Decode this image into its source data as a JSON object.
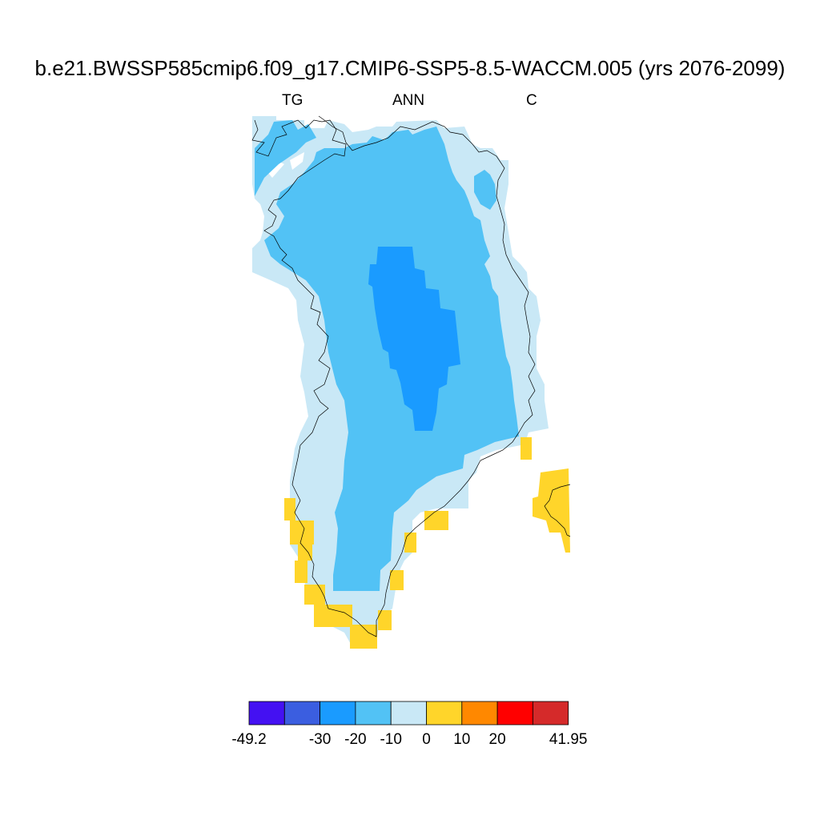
{
  "title": "b.e21.BWSSP585cmip6.f09_g17.CMIP6-SSP5-8.5-WACCM.005 (yrs 2076-2099)",
  "left_string": "TG",
  "center_string": "ANN",
  "right_string": "C",
  "colorbar": {
    "colors": [
      "#4411f2",
      "#3b5ee0",
      "#1a9bff",
      "#52c2f5",
      "#c9e8f6",
      "#ffd52a",
      "#ff8800",
      "#ff0000",
      "#d52a2a"
    ],
    "labels": [
      "-49.2",
      "-30",
      "-20",
      "-10",
      "0",
      "10",
      "20",
      "41.95"
    ]
  },
  "map_regions": [
    {
      "name": "land-0-to-minus-10",
      "value_range": "-10 to 0",
      "color": "#c9e8f6"
    },
    {
      "name": "land-minus-10-to-minus-20",
      "value_range": "-20 to -10",
      "color": "#52c2f5"
    },
    {
      "name": "land-minus-20-to-minus-30",
      "value_range": "-30 to -20",
      "color": "#1a9bff"
    },
    {
      "name": "coast-0-to-10",
      "value_range": "0 to 10",
      "color": "#ffd52a"
    }
  ]
}
